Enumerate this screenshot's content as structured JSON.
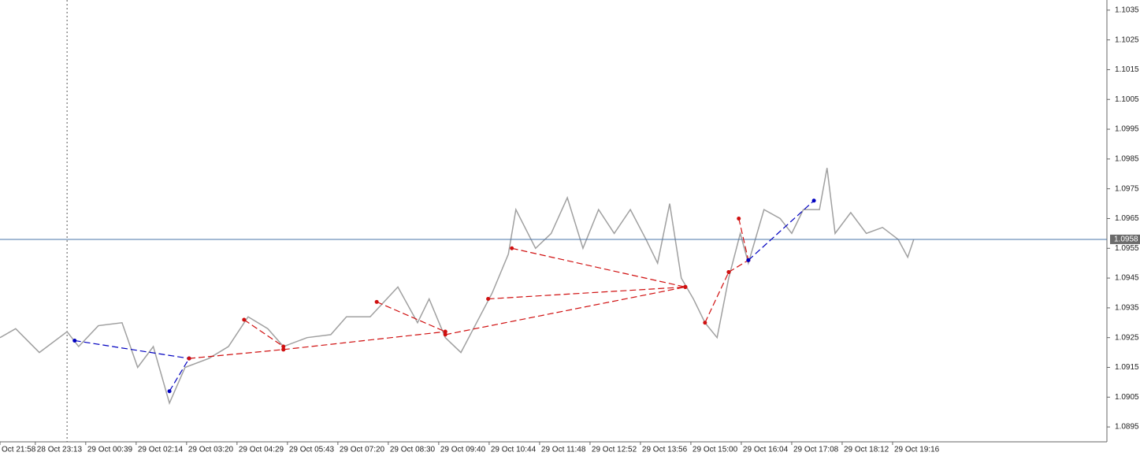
{
  "chart_data": {
    "type": "line",
    "xlim": [
      0.3,
      22.25
    ],
    "ylim": [
      1.089,
      1.10384
    ],
    "xticks": [
      {
        "value": 0.3,
        "label": "Oct 21:58"
      },
      {
        "value": 1,
        "label": "28 Oct 23:13"
      },
      {
        "value": 2,
        "label": "29 Oct 00:39"
      },
      {
        "value": 3,
        "label": "29 Oct 02:14"
      },
      {
        "value": 4,
        "label": "29 Oct 03:20"
      },
      {
        "value": 5,
        "label": "29 Oct 04:29"
      },
      {
        "value": 6,
        "label": "29 Oct 05:43"
      },
      {
        "value": 7,
        "label": "29 Oct 07:20"
      },
      {
        "value": 8,
        "label": "29 Oct 08:30"
      },
      {
        "value": 9,
        "label": "29 Oct 09:40"
      },
      {
        "value": 10,
        "label": "29 Oct 10:44"
      },
      {
        "value": 11,
        "label": "29 Oct 11:48"
      },
      {
        "value": 12,
        "label": "29 Oct 12:52"
      },
      {
        "value": 13,
        "label": "29 Oct 13:56"
      },
      {
        "value": 14,
        "label": "29 Oct 15:00"
      },
      {
        "value": 15,
        "label": "29 Oct 16:04"
      },
      {
        "value": 16,
        "label": "29 Oct 17:08"
      },
      {
        "value": 17,
        "label": "29 Oct 18:12"
      },
      {
        "value": 18,
        "label": "29 Oct 19:16"
      }
    ],
    "yticks": [
      1.0895,
      1.0905,
      1.0915,
      1.0925,
      1.0935,
      1.0945,
      1.0955,
      1.0965,
      1.0975,
      1.0985,
      1.0995,
      1.1005,
      1.1015,
      1.1025,
      1.1035
    ],
    "color": "#a0a0a0",
    "x": [
      0.3,
      0.61,
      1.08,
      1.63,
      1.86,
      2.25,
      2.72,
      3.03,
      3.34,
      3.66,
      3.97,
      4.44,
      4.83,
      5.22,
      5.61,
      5.92,
      6.39,
      6.86,
      7.17,
      7.64,
      8.19,
      8.58,
      8.81,
      9.13,
      9.44,
      9.75,
      10.06,
      10.38,
      10.53,
      10.92,
      11.23,
      11.55,
      11.86,
      12.17,
      12.48,
      12.8,
      13.11,
      13.34,
      13.58,
      13.81,
      14.05,
      14.28,
      14.52,
      14.75,
      14.98,
      15.14,
      15.45,
      15.77,
      16.0,
      16.23,
      16.55,
      16.7,
      16.86,
      17.17,
      17.48,
      17.8,
      18.11,
      18.3,
      18.42
    ],
    "values": [
      1.0925,
      1.0928,
      1.092,
      1.0927,
      1.0922,
      1.0929,
      1.093,
      1.0915,
      1.0922,
      1.0903,
      1.0915,
      1.0918,
      1.0922,
      1.0932,
      1.0928,
      1.0922,
      1.0925,
      1.0926,
      1.0932,
      1.0932,
      1.0942,
      1.093,
      1.0938,
      1.0925,
      1.092,
      1.093,
      1.094,
      1.0953,
      1.0968,
      1.0955,
      1.096,
      1.0972,
      1.0955,
      1.0968,
      1.096,
      1.0968,
      1.0958,
      1.095,
      1.097,
      1.0945,
      1.0938,
      1.093,
      1.0925,
      1.0945,
      1.096,
      1.095,
      1.0968,
      1.0965,
      1.096,
      1.0968,
      1.0968,
      1.0982,
      1.096,
      1.0967,
      1.096,
      1.0962,
      1.0958,
      1.0952,
      1.0958
    ],
    "current_price": 1.0958,
    "current_price_color": "#4a74a8",
    "vline_x": 1.63,
    "segments": [
      {
        "color": "#0000c0",
        "x": [
          1.78,
          4.05
        ],
        "values": [
          1.0924,
          1.0918
        ]
      },
      {
        "color": "#0000c0",
        "x": [
          3.66,
          4.05
        ],
        "values": [
          1.0907,
          1.0918
        ]
      },
      {
        "color": "#d01010",
        "x": [
          4.05,
          5.92
        ],
        "values": [
          1.0918,
          1.0921
        ]
      },
      {
        "color": "#d01010",
        "x": [
          5.14,
          5.92
        ],
        "values": [
          1.0931,
          1.0922
        ]
      },
      {
        "color": "#d01010",
        "x": [
          5.92,
          9.13
        ],
        "values": [
          1.0921,
          1.0927
        ]
      },
      {
        "color": "#d01010",
        "x": [
          7.77,
          9.13
        ],
        "values": [
          1.0937,
          1.0927
        ]
      },
      {
        "color": "#d01010",
        "x": [
          9.13,
          13.89
        ],
        "values": [
          1.0926,
          1.0942
        ]
      },
      {
        "color": "#d01010",
        "x": [
          9.98,
          13.89
        ],
        "values": [
          1.0938,
          1.0942
        ]
      },
      {
        "color": "#d01010",
        "x": [
          10.45,
          13.89
        ],
        "values": [
          1.0955,
          1.0942
        ]
      },
      {
        "color": "#d01010",
        "x": [
          14.28,
          14.75
        ],
        "values": [
          1.093,
          1.0947
        ]
      },
      {
        "color": "#d01010",
        "x": [
          14.75,
          15.14
        ],
        "values": [
          1.0947,
          1.0951
        ]
      },
      {
        "color": "#d01010",
        "x": [
          14.95,
          15.14
        ],
        "values": [
          1.0965,
          1.0951
        ]
      },
      {
        "color": "#0000c0",
        "x": [
          15.14,
          16.44
        ],
        "values": [
          1.0951,
          1.0971
        ]
      }
    ]
  }
}
